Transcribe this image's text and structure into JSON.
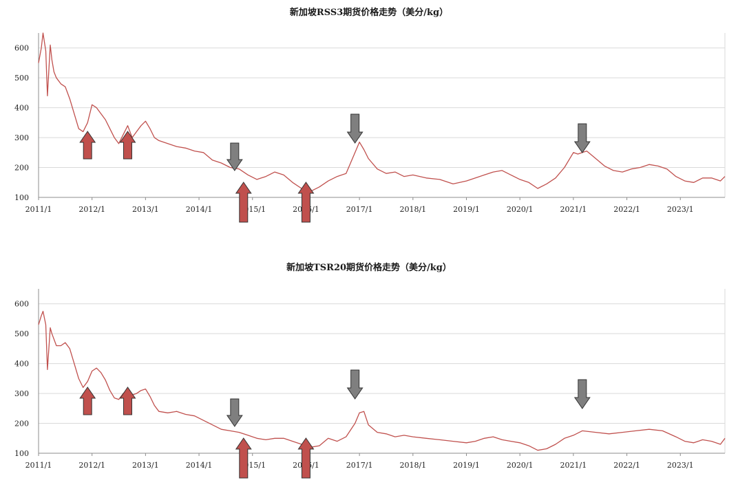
{
  "colors": {
    "series": "#c0504d",
    "arrow_up": "#c0504d",
    "arrow_down": "#7f7f7f",
    "grid": "#d9d9d9"
  },
  "chart_data": [
    {
      "type": "line",
      "title": "新加坡RSS3期货价格走势（美分/kg）",
      "xlabel": "",
      "ylabel": "",
      "grid": true,
      "legend": "none",
      "x_ticks": [
        "2011/1",
        "2012/1",
        "2013/1",
        "2014/1",
        "2015/1",
        "2016/1",
        "2017/1",
        "2018/1",
        "2019/1",
        "2020/1",
        "2021/1",
        "2022/1",
        "2023/1"
      ],
      "y_ticks": [
        100,
        200,
        300,
        400,
        500,
        600
      ],
      "xlim": [
        "2011-01",
        "2023-11"
      ],
      "ylim": [
        100,
        650
      ],
      "series": [
        {
          "x": [
            "2011-01",
            "2011-01-20",
            "2011-02",
            "2011-02-20",
            "2011-03",
            "2011-03-20",
            "2011-04",
            "2011-04-15",
            "2011-05",
            "2011-06",
            "2011-07",
            "2011-08",
            "2011-09",
            "2011-10",
            "2011-11",
            "2011-12",
            "2012-01",
            "2012-02",
            "2012-03",
            "2012-04",
            "2012-05",
            "2012-06",
            "2012-07",
            "2012-08",
            "2012-09",
            "2012-10",
            "2012-11",
            "2012-12",
            "2013-01",
            "2013-02",
            "2013-03",
            "2013-04",
            "2013-06",
            "2013-08",
            "2013-10",
            "2013-12",
            "2014-02",
            "2014-04",
            "2014-06",
            "2014-08",
            "2014-10",
            "2014-12",
            "2015-02",
            "2015-04",
            "2015-06",
            "2015-08",
            "2015-10",
            "2015-12",
            "2016-02",
            "2016-04",
            "2016-06",
            "2016-08",
            "2016-10",
            "2016-12",
            "2017-01",
            "2017-02",
            "2017-03",
            "2017-05",
            "2017-07",
            "2017-09",
            "2017-11",
            "2018-01",
            "2018-04",
            "2018-07",
            "2018-10",
            "2019-01",
            "2019-03",
            "2019-05",
            "2019-07",
            "2019-09",
            "2019-11",
            "2020-01",
            "2020-03",
            "2020-05",
            "2020-07",
            "2020-09",
            "2020-11",
            "2021-01",
            "2021-02",
            "2021-03",
            "2021-04",
            "2021-06",
            "2021-08",
            "2021-10",
            "2021-12",
            "2022-02",
            "2022-04",
            "2022-06",
            "2022-08",
            "2022-10",
            "2022-12",
            "2023-02",
            "2023-04",
            "2023-06",
            "2023-08",
            "2023-10",
            "2023-11"
          ],
          "y": [
            550,
            600,
            650,
            590,
            440,
            610,
            560,
            520,
            500,
            480,
            470,
            430,
            380,
            330,
            320,
            350,
            410,
            400,
            380,
            360,
            330,
            300,
            280,
            310,
            340,
            300,
            320,
            340,
            355,
            330,
            300,
            290,
            280,
            270,
            265,
            255,
            250,
            225,
            215,
            200,
            195,
            175,
            160,
            170,
            185,
            175,
            150,
            130,
            120,
            135,
            155,
            170,
            180,
            250,
            285,
            260,
            230,
            195,
            180,
            185,
            170,
            175,
            165,
            160,
            145,
            155,
            165,
            175,
            185,
            190,
            175,
            160,
            150,
            130,
            145,
            165,
            200,
            250,
            245,
            250,
            255,
            230,
            205,
            190,
            185,
            195,
            200,
            210,
            205,
            195,
            170,
            155,
            150,
            165,
            165,
            155,
            170
          ]
        }
      ],
      "annotations": [
        {
          "type": "arrow-up",
          "x": "2011-12"
        },
        {
          "type": "arrow-up",
          "x": "2012-09"
        },
        {
          "type": "arrow-down",
          "x": "2014-09"
        },
        {
          "type": "arrow-up",
          "x": "2014-11"
        },
        {
          "type": "arrow-up",
          "x": "2016-01"
        },
        {
          "type": "arrow-down",
          "x": "2016-12"
        },
        {
          "type": "arrow-down",
          "x": "2021-03"
        }
      ]
    },
    {
      "type": "line",
      "title": "新加坡TSR20期货价格走势（美分/kg）",
      "xlabel": "",
      "ylabel": "",
      "grid": true,
      "legend": "none",
      "x_ticks": [
        "2011/1",
        "2012/1",
        "2013/1",
        "2014/1",
        "2015/1",
        "2016/1",
        "2017/1",
        "2018/1",
        "2019/1",
        "2020/1",
        "2021/1",
        "2022/1",
        "2023/1"
      ],
      "y_ticks": [
        100,
        200,
        300,
        400,
        500,
        600
      ],
      "xlim": [
        "2011-01",
        "2023-11"
      ],
      "ylim": [
        100,
        650
      ],
      "series": [
        {
          "x": [
            "2011-01",
            "2011-01-20",
            "2011-02",
            "2011-02-20",
            "2011-03",
            "2011-03-20",
            "2011-04",
            "2011-05",
            "2011-06",
            "2011-07",
            "2011-08",
            "2011-09",
            "2011-10",
            "2011-11",
            "2011-12",
            "2012-01",
            "2012-02",
            "2012-03",
            "2012-04",
            "2012-05",
            "2012-06",
            "2012-07",
            "2012-08",
            "2012-09",
            "2012-10",
            "2012-11",
            "2012-12",
            "2013-01",
            "2013-02",
            "2013-03",
            "2013-04",
            "2013-06",
            "2013-08",
            "2013-10",
            "2013-12",
            "2014-02",
            "2014-04",
            "2014-06",
            "2014-08",
            "2014-10",
            "2014-12",
            "2015-02",
            "2015-04",
            "2015-06",
            "2015-08",
            "2015-10",
            "2015-12",
            "2016-02",
            "2016-04",
            "2016-06",
            "2016-08",
            "2016-10",
            "2016-12",
            "2017-01",
            "2017-02",
            "2017-03",
            "2017-05",
            "2017-07",
            "2017-09",
            "2017-11",
            "2018-01",
            "2018-04",
            "2018-07",
            "2018-10",
            "2019-01",
            "2019-03",
            "2019-05",
            "2019-07",
            "2019-09",
            "2019-11",
            "2020-01",
            "2020-03",
            "2020-05",
            "2020-07",
            "2020-09",
            "2020-11",
            "2021-01",
            "2021-03",
            "2021-06",
            "2021-09",
            "2021-12",
            "2022-03",
            "2022-06",
            "2022-09",
            "2022-12",
            "2023-02",
            "2023-04",
            "2023-06",
            "2023-08",
            "2023-10",
            "2023-11"
          ],
          "y": [
            530,
            560,
            575,
            530,
            380,
            520,
            500,
            460,
            460,
            470,
            450,
            400,
            350,
            320,
            340,
            375,
            385,
            370,
            345,
            310,
            285,
            280,
            300,
            310,
            295,
            300,
            310,
            315,
            290,
            260,
            240,
            235,
            240,
            230,
            225,
            210,
            195,
            180,
            175,
            170,
            160,
            150,
            145,
            150,
            150,
            140,
            130,
            120,
            125,
            150,
            140,
            155,
            200,
            235,
            240,
            195,
            170,
            165,
            155,
            160,
            155,
            150,
            145,
            140,
            135,
            140,
            150,
            155,
            145,
            140,
            135,
            125,
            110,
            115,
            130,
            150,
            160,
            175,
            170,
            165,
            170,
            175,
            180,
            175,
            155,
            140,
            135,
            145,
            140,
            130,
            150
          ]
        }
      ],
      "annotations": [
        {
          "type": "arrow-up",
          "x": "2011-12"
        },
        {
          "type": "arrow-up",
          "x": "2012-09"
        },
        {
          "type": "arrow-down",
          "x": "2014-09"
        },
        {
          "type": "arrow-up",
          "x": "2014-11"
        },
        {
          "type": "arrow-up",
          "x": "2016-01"
        },
        {
          "type": "arrow-down",
          "x": "2016-12"
        },
        {
          "type": "arrow-down",
          "x": "2021-03"
        }
      ]
    }
  ]
}
